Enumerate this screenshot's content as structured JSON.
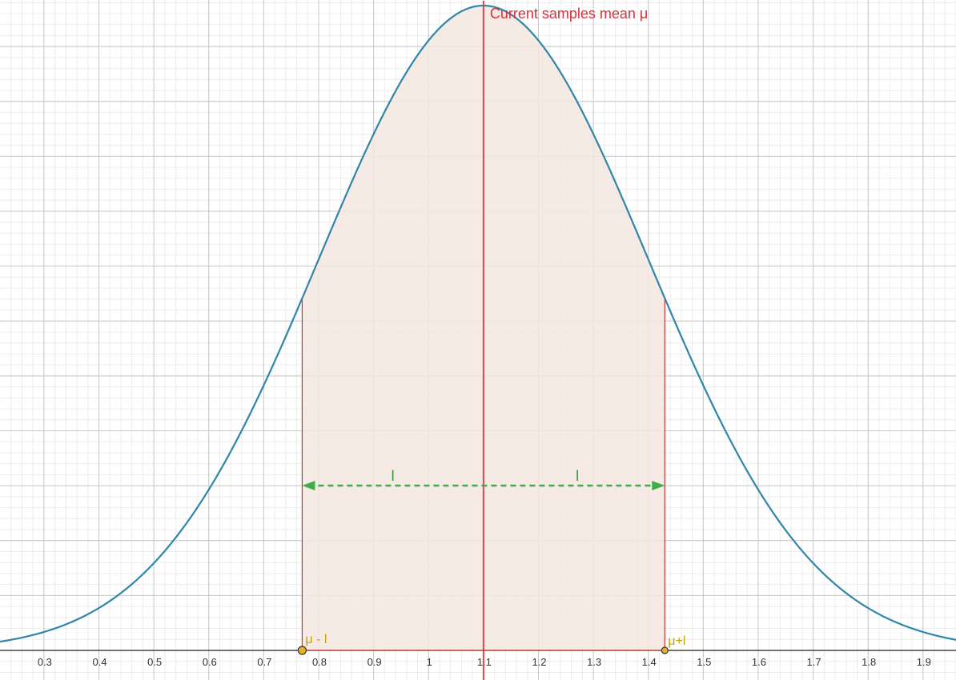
{
  "chart_data": {
    "type": "line",
    "title": "",
    "xlabel": "",
    "ylabel": "",
    "xlim": [
      0.22,
      1.96
    ],
    "grid": true,
    "x_ticks": [
      "0.3",
      "0.4",
      "0.5",
      "0.6",
      "0.7",
      "0.8",
      "0.9",
      "1",
      "1.1",
      "1.2",
      "1.3",
      "1.4",
      "1.5",
      "1.6",
      "1.7",
      "1.8",
      "1.9"
    ],
    "x_tick_values": [
      0.3,
      0.4,
      0.5,
      0.6,
      0.7,
      0.8,
      0.9,
      1.0,
      1.1,
      1.2,
      1.3,
      1.4,
      1.5,
      1.6,
      1.7,
      1.8,
      1.9
    ],
    "distribution": {
      "name": "normal",
      "mean": 1.1,
      "sd": 0.3
    },
    "interval": {
      "lower": 0.77,
      "upper": 1.43,
      "shaded": true
    },
    "annotations": {
      "mean_label": "Current samples mean μ",
      "left_half_label": "l",
      "right_half_label": "l",
      "lower_point_label": "μ - l",
      "upper_point_label": "μ+l"
    },
    "colors": {
      "curve": "#2f86a8",
      "curve_top": "#2a5f80",
      "mean_line": "#e0454a",
      "interval_edge": "#c0392b",
      "shade": "#f4e6e1",
      "arrow": "#3fae49",
      "points": "#e6b422",
      "grid_major": "#c8c8c8",
      "grid_minor": "#ececec"
    }
  }
}
